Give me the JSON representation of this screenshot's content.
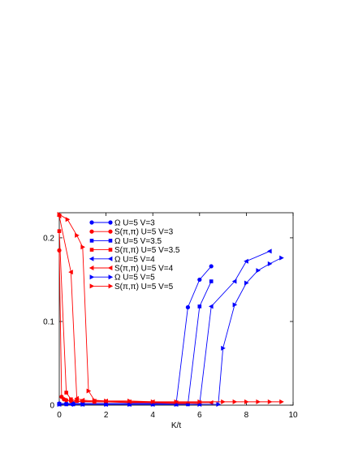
{
  "chart_data": {
    "type": "line",
    "title": "",
    "xlabel": "K/t",
    "ylabel": "",
    "xlim": [
      0,
      10
    ],
    "ylim": [
      0,
      0.23
    ],
    "x_ticks": [
      "0",
      "2",
      "4",
      "6",
      "8",
      "10"
    ],
    "y_ticks": [
      "0",
      "0.1",
      "0.2"
    ],
    "x_tick_values": [
      0,
      2,
      4,
      6,
      8,
      10
    ],
    "y_tick_values": [
      0,
      0.1,
      0.2
    ],
    "grid": false,
    "legend_position": "upper-left inside",
    "series": [
      {
        "name": "Ω U=5 V=3",
        "color": "#0000ff",
        "marker": "circle",
        "points": [
          [
            0,
            0.002
          ],
          [
            0.3,
            0.002
          ],
          [
            0.6,
            0.002
          ],
          [
            1.0,
            0.002
          ],
          [
            2.0,
            0.002
          ],
          [
            3.0,
            0.002
          ],
          [
            4.0,
            0.002
          ],
          [
            5.0,
            0.002
          ],
          [
            5.5,
            0.117
          ],
          [
            6.0,
            0.15
          ],
          [
            6.5,
            0.166
          ]
        ]
      },
      {
        "name": "S(π,π) U=5 V=3",
        "color": "#ff0000",
        "marker": "circle",
        "points": [
          [
            0,
            0.185
          ],
          [
            0.1,
            0.01
          ],
          [
            0.2,
            0.007
          ],
          [
            0.3,
            0.006
          ],
          [
            0.5,
            0.005
          ],
          [
            1.0,
            0.004
          ],
          [
            2.0,
            0.004
          ],
          [
            3.0,
            0.003
          ],
          [
            4.0,
            0.003
          ],
          [
            5.0,
            0.002
          ],
          [
            5.5,
            0.002
          ]
        ]
      },
      {
        "name": "Ω U=5 V=3.5",
        "color": "#0000ff",
        "marker": "square",
        "points": [
          [
            0,
            0.001
          ],
          [
            0.3,
            0.001
          ],
          [
            0.6,
            0.001
          ],
          [
            1.0,
            0.001
          ],
          [
            2.0,
            0.001
          ],
          [
            3.0,
            0.001
          ],
          [
            4.0,
            0.001
          ],
          [
            5.0,
            0.001
          ],
          [
            5.5,
            0.001
          ],
          [
            6.0,
            0.118
          ],
          [
            6.5,
            0.148
          ]
        ]
      },
      {
        "name": "S(π,π) U=5 V=3.5",
        "color": "#ff0000",
        "marker": "square",
        "points": [
          [
            0,
            0.208
          ],
          [
            0.3,
            0.015
          ],
          [
            0.5,
            0.007
          ],
          [
            0.75,
            0.005
          ],
          [
            1.0,
            0.005
          ],
          [
            1.5,
            0.004
          ],
          [
            2.0,
            0.004
          ],
          [
            3.0,
            0.004
          ],
          [
            4.0,
            0.003
          ],
          [
            5.0,
            0.003
          ],
          [
            6.0,
            0.002
          ]
        ]
      },
      {
        "name": "Ω U=5 V=4",
        "color": "#0000ff",
        "marker": "triangle-left",
        "points": [
          [
            0,
            0.001
          ],
          [
            0.5,
            0.001
          ],
          [
            1.0,
            0.001
          ],
          [
            2.0,
            0.001
          ],
          [
            3.0,
            0.001
          ],
          [
            4.0,
            0.001
          ],
          [
            5.0,
            0.001
          ],
          [
            6.0,
            0.001
          ],
          [
            6.5,
            0.118
          ],
          [
            7.5,
            0.148
          ],
          [
            8.0,
            0.172
          ],
          [
            9.0,
            0.184
          ]
        ]
      },
      {
        "name": "S(π,π) U=5 V=4",
        "color": "#ff0000",
        "marker": "triangle-left",
        "points": [
          [
            0,
            0.226
          ],
          [
            0.5,
            0.159
          ],
          [
            0.75,
            0.008
          ],
          [
            1.0,
            0.006
          ],
          [
            1.5,
            0.005
          ],
          [
            2.0,
            0.005
          ],
          [
            3.0,
            0.004
          ],
          [
            4.0,
            0.004
          ],
          [
            5.0,
            0.003
          ],
          [
            6.0,
            0.003
          ],
          [
            6.5,
            0.003
          ]
        ]
      },
      {
        "name": "Ω U=5 V=5",
        "color": "#0000ff",
        "marker": "triangle-right",
        "points": [
          [
            0,
            0.001
          ],
          [
            1.0,
            0.001
          ],
          [
            2.0,
            0.001
          ],
          [
            3.0,
            0.001
          ],
          [
            4.0,
            0.001
          ],
          [
            5.0,
            0.001
          ],
          [
            6.0,
            0.001
          ],
          [
            6.8,
            0.001
          ],
          [
            7.0,
            0.068
          ],
          [
            7.5,
            0.12
          ],
          [
            8.0,
            0.146
          ],
          [
            8.5,
            0.161
          ],
          [
            9.0,
            0.169
          ],
          [
            9.5,
            0.176
          ]
        ]
      },
      {
        "name": "S(π,π) U=5 V=5",
        "color": "#ff0000",
        "marker": "triangle-right",
        "points": [
          [
            0,
            0.228
          ],
          [
            0.35,
            0.222
          ],
          [
            0.75,
            0.203
          ],
          [
            1.0,
            0.189
          ],
          [
            1.25,
            0.017
          ],
          [
            1.5,
            0.006
          ],
          [
            2.0,
            0.005
          ],
          [
            3.0,
            0.005
          ],
          [
            4.0,
            0.004
          ],
          [
            5.0,
            0.004
          ],
          [
            6.0,
            0.004
          ],
          [
            7.0,
            0.004
          ],
          [
            7.5,
            0.004
          ],
          [
            8.0,
            0.004
          ],
          [
            8.5,
            0.004
          ],
          [
            9.0,
            0.004
          ],
          [
            9.5,
            0.004
          ]
        ]
      }
    ]
  }
}
